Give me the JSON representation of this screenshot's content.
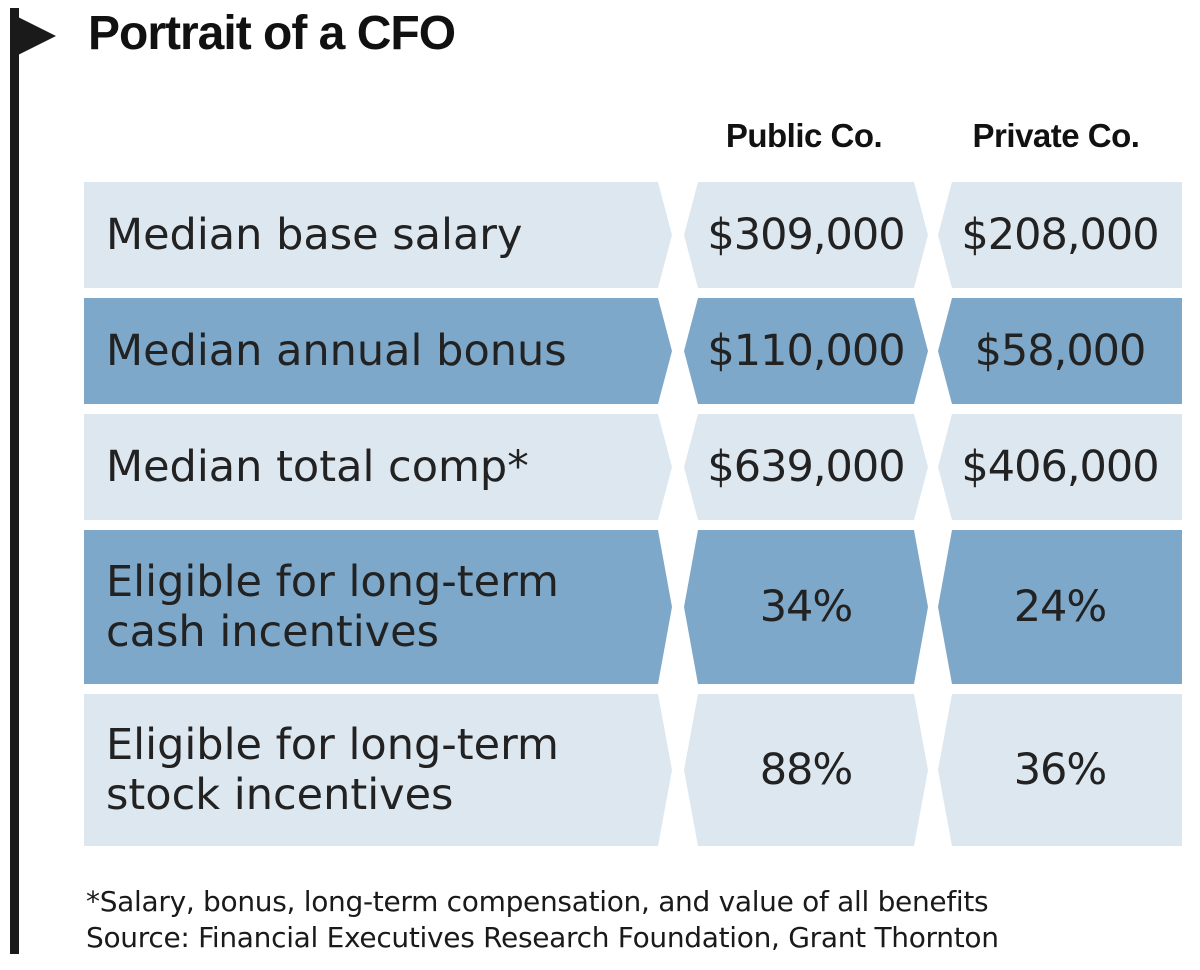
{
  "chart_data": {
    "type": "table",
    "title": "Portrait of a CFO",
    "columns": [
      "Public Co.",
      "Private Co."
    ],
    "rows": [
      {
        "label": [
          "Median base salary"
        ],
        "public": "$309,000",
        "private": "$208,000",
        "public_value": 309000,
        "private_value": 208000
      },
      {
        "label": [
          "Median annual bonus"
        ],
        "public": "$110,000",
        "private": "$58,000",
        "public_value": 110000,
        "private_value": 58000
      },
      {
        "label": [
          "Median total comp*"
        ],
        "public": "$639,000",
        "private": "$406,000",
        "public_value": 639000,
        "private_value": 406000
      },
      {
        "label": [
          "Eligible for long-term",
          "cash incentives"
        ],
        "public": "34%",
        "private": "24%",
        "public_value": 34,
        "private_value": 24
      },
      {
        "label": [
          "Eligible for long-term",
          "stock incentives"
        ],
        "public": "88%",
        "private": "36%",
        "public_value": 88,
        "private_value": 36
      }
    ],
    "footnote": "*Salary, bonus, long-term compensation, and value of all benefits",
    "source": "Source: Financial Executives Research Foundation, Grant Thornton",
    "colors": {
      "light_row": "#dde7f0",
      "dark_row": "#7ea8c9",
      "flag": "#1a1a1a"
    }
  }
}
